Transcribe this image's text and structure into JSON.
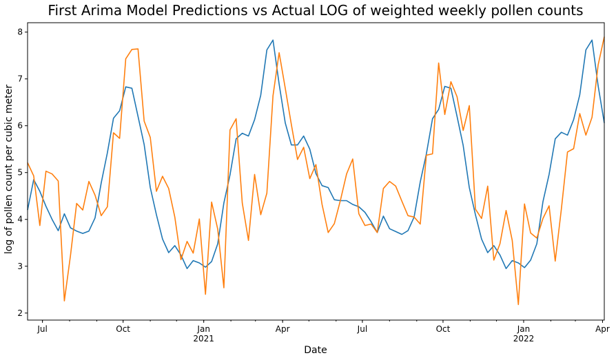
{
  "chart_data": {
    "type": "line",
    "title": "First Arima Model Predictions vs Actual LOG of weighted weekly pollen counts",
    "xlabel": "Date",
    "ylabel": "log of pollen count per cubic meter",
    "ylim": [
      1.85,
      8.2
    ],
    "yticks": [
      "2",
      "3",
      "4",
      "5",
      "6",
      "7",
      "8"
    ],
    "xlim": [
      "2020-06-14",
      "2022-04-03"
    ],
    "xticks": [
      {
        "date": "2020-07-01",
        "label": "Jul",
        "sublabel": ""
      },
      {
        "date": "2020-10-01",
        "label": "Oct",
        "sublabel": ""
      },
      {
        "date": "2021-01-01",
        "label": "Jan",
        "sublabel": "2021"
      },
      {
        "date": "2021-04-01",
        "label": "Apr",
        "sublabel": ""
      },
      {
        "date": "2021-07-01",
        "label": "Jul",
        "sublabel": ""
      },
      {
        "date": "2021-10-01",
        "label": "Oct",
        "sublabel": ""
      },
      {
        "date": "2022-01-01",
        "label": "Jan",
        "sublabel": "2022"
      },
      {
        "date": "2022-04-01",
        "label": "Apr",
        "sublabel": ""
      }
    ],
    "grid": false,
    "legend": "none",
    "start_date": "2020-06-14",
    "series": [
      {
        "color": "#1f77b4",
        "values": [
          4.2,
          4.85,
          4.6,
          4.28,
          4.0,
          3.76,
          4.12,
          3.82,
          3.75,
          3.7,
          3.75,
          4.03,
          4.78,
          5.42,
          6.16,
          6.32,
          6.83,
          6.8,
          6.2,
          5.6,
          4.68,
          4.1,
          3.58,
          3.29,
          3.44,
          3.24,
          2.95,
          3.12,
          3.07,
          2.98,
          3.1,
          3.48,
          4.35,
          4.95,
          5.72,
          5.84,
          5.78,
          6.13,
          6.65,
          7.62,
          7.83,
          6.89,
          6.06,
          5.59,
          5.59,
          5.78,
          5.5,
          4.98,
          4.72,
          4.68,
          4.42,
          4.4,
          4.4,
          4.32,
          4.27,
          4.15,
          3.95,
          3.72,
          4.07,
          3.8,
          3.74,
          3.68,
          3.76,
          4.05,
          4.8,
          5.4,
          6.15,
          6.35,
          6.84,
          6.8,
          6.2,
          5.58,
          4.68,
          4.1,
          3.58,
          3.29,
          3.44,
          3.24,
          2.95,
          3.12,
          3.07,
          2.97,
          3.13,
          3.48,
          4.38,
          4.96,
          5.72,
          5.86,
          5.8,
          6.13,
          6.66,
          7.62,
          7.83,
          6.85,
          6.06
        ]
      },
      {
        "color": "#ff7f0e",
        "values": [
          5.21,
          4.93,
          3.87,
          5.03,
          4.97,
          4.82,
          2.26,
          3.23,
          4.34,
          4.2,
          4.81,
          4.52,
          4.08,
          4.27,
          5.85,
          5.73,
          7.43,
          7.63,
          7.64,
          6.1,
          5.75,
          4.6,
          4.92,
          4.66,
          4.05,
          3.14,
          3.53,
          3.28,
          4.01,
          2.4,
          4.37,
          3.79,
          2.54,
          5.91,
          6.15,
          4.35,
          3.55,
          4.96,
          4.1,
          4.56,
          6.64,
          7.56,
          6.8,
          6.02,
          5.28,
          5.54,
          4.87,
          5.17,
          4.32,
          3.72,
          3.91,
          4.41,
          4.97,
          5.29,
          4.12,
          3.87,
          3.9,
          3.72,
          4.66,
          4.81,
          4.71,
          4.39,
          4.08,
          4.05,
          3.9,
          5.37,
          5.4,
          7.34,
          6.24,
          6.94,
          6.62,
          5.9,
          6.43,
          4.22,
          4.02,
          4.71,
          3.13,
          3.48,
          4.19,
          3.55,
          2.18,
          4.33,
          3.71,
          3.6,
          4.02,
          4.29,
          3.11,
          4.22,
          5.44,
          5.51,
          6.26,
          5.8,
          6.18,
          7.3,
          7.9
        ]
      }
    ]
  }
}
